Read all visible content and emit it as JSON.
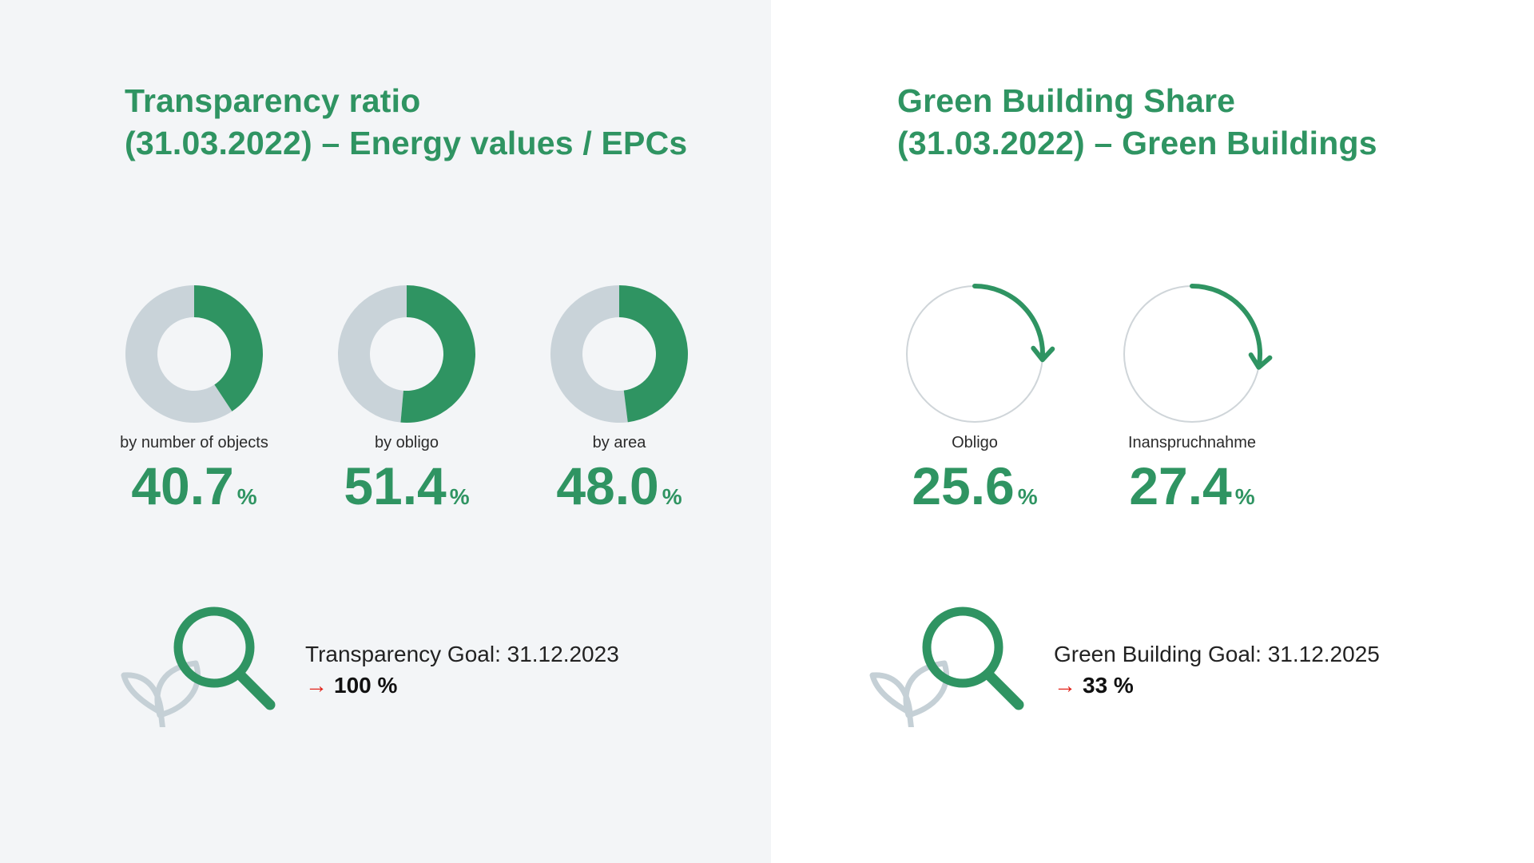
{
  "colors": {
    "accent": "#2f9462",
    "track": "#c9d3d9",
    "ring": "#cfd5d9",
    "arrow": "#e2231a",
    "leaf": "#c5d0d6"
  },
  "transparency": {
    "title_line1": "Transparency ratio",
    "title_line2": "(31.03.2022) – Energy values / EPCs",
    "goal_text": "Transparency Goal: 31.12.2023",
    "goal_target": "100 %",
    "goal_icon": "leaf-magnifier-icon"
  },
  "green_building": {
    "title_line1": "Green Building Share",
    "title_line2": "(31.03.2022) – Green Buildings",
    "goal_text": "Green Building Goal: 31.12.2025",
    "goal_target": "33 %",
    "goal_icon": "leaf-magnifier-icon"
  },
  "chart_data": [
    {
      "type": "pie",
      "style": "donut",
      "series": [
        {
          "category": "by number of objects",
          "value": 40.7,
          "display": "40.7",
          "unit": "%"
        },
        {
          "category": "by obligo",
          "value": 51.4,
          "display": "51.4",
          "unit": "%"
        },
        {
          "category": "by area",
          "value": 48.0,
          "display": "48.0",
          "unit": "%"
        }
      ]
    },
    {
      "type": "progress-ring",
      "series": [
        {
          "category": "Obligo",
          "value": 25.6,
          "display": "25.6",
          "unit": "%"
        },
        {
          "category": "Inanspruchnahme",
          "value": 27.4,
          "display": "27.4",
          "unit": "%"
        }
      ]
    }
  ]
}
